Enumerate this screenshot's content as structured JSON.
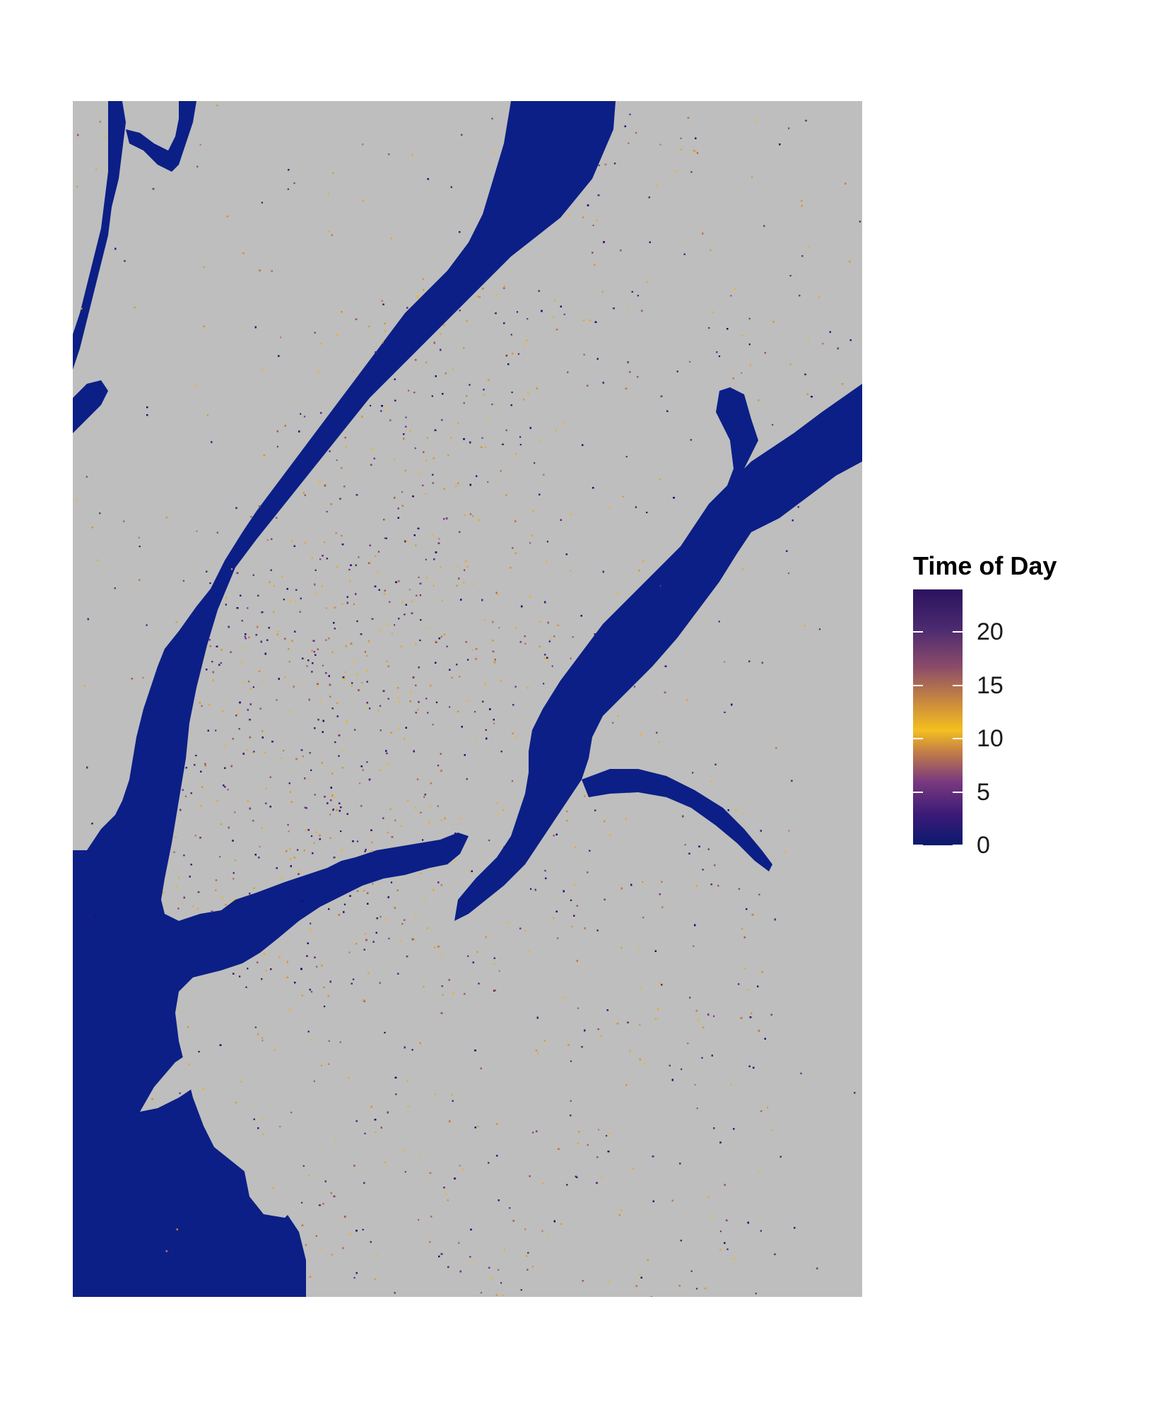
{
  "chart_data": {
    "type": "scatter",
    "description_basis": "point map of locations over Manhattan and surrounding boroughs, colored by time of day",
    "legend": {
      "title": "Time of Day",
      "ticks": [
        "0",
        "5",
        "10",
        "15",
        "20"
      ],
      "range": [
        0,
        24
      ],
      "placement": "right"
    },
    "colors": {
      "land": "#bebebe",
      "water": "#0b1f86",
      "scale": [
        "#0a1a6e",
        "#3b1a78",
        "#7a3a7e",
        "#c07a4a",
        "#f5bf1f",
        "#c07a4a",
        "#7a3a7e",
        "#3b1a78",
        "#2b125e"
      ]
    }
  }
}
